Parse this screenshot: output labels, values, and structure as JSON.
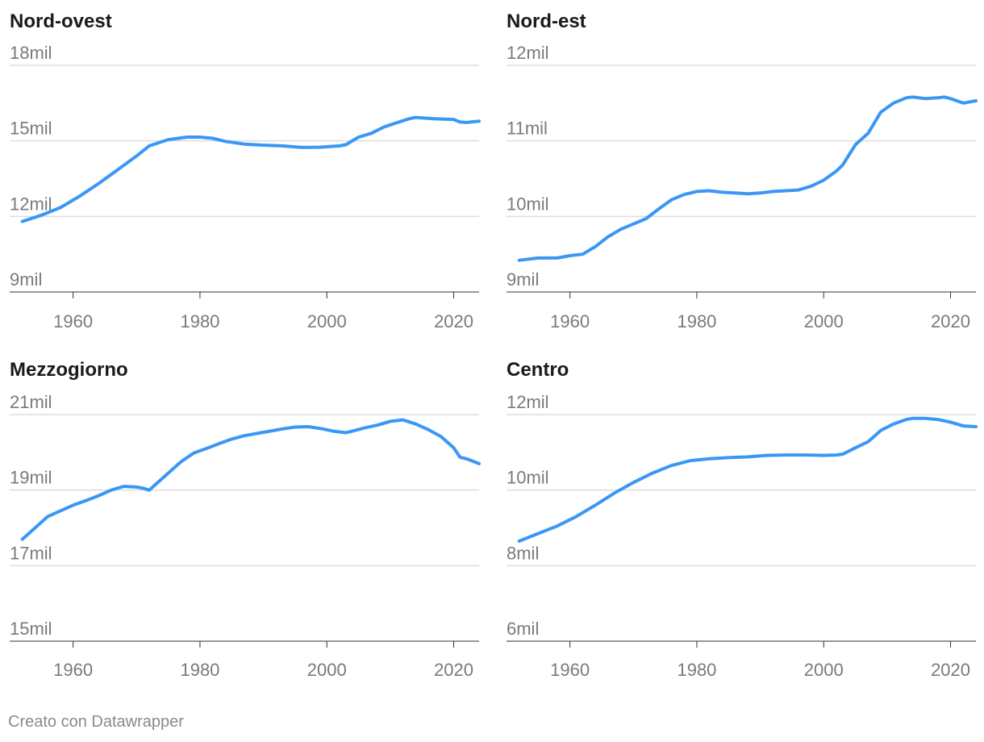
{
  "footer": {
    "credit": "Creato con Datawrapper"
  },
  "colors": {
    "line": "#3A97F5",
    "grid": "#dddddd",
    "text": "#7a7a7a",
    "title": "#1a1a1a"
  },
  "chart_data": [
    {
      "type": "line",
      "title": "Nord-ovest",
      "ylabel": "",
      "xlabel": "",
      "ylim": [
        9,
        18
      ],
      "yticks": [
        9,
        12,
        15,
        18
      ],
      "ytick_labels": [
        "9mil",
        "12mil",
        "15mil",
        "18mil"
      ],
      "xlim": [
        1950,
        2024
      ],
      "xticks": [
        1960,
        1980,
        2000,
        2020
      ],
      "xtick_labels": [
        "1960",
        "1980",
        "2000",
        "2020"
      ],
      "series": [
        {
          "name": "Nord-ovest",
          "x": [
            1952,
            1955,
            1958,
            1961,
            1964,
            1967,
            1970,
            1972,
            1975,
            1978,
            1980,
            1982,
            1984,
            1987,
            1990,
            1993,
            1996,
            1999,
            2002,
            2003,
            2005,
            2007,
            2009,
            2011,
            2013,
            2014,
            2015,
            2017,
            2020,
            2021,
            2022,
            2024
          ],
          "values": [
            11.8,
            12.05,
            12.35,
            12.8,
            13.3,
            13.85,
            14.4,
            14.8,
            15.05,
            15.15,
            15.15,
            15.1,
            14.98,
            14.87,
            14.83,
            14.8,
            14.74,
            14.75,
            14.8,
            14.85,
            15.15,
            15.3,
            15.55,
            15.72,
            15.88,
            15.93,
            15.91,
            15.88,
            15.85,
            15.75,
            15.73,
            15.78
          ]
        }
      ]
    },
    {
      "type": "line",
      "title": "Nord-est",
      "ylabel": "",
      "xlabel": "",
      "ylim": [
        9,
        12
      ],
      "yticks": [
        9,
        10,
        11,
        12
      ],
      "ytick_labels": [
        "9mil",
        "10mil",
        "11mil",
        "12mil"
      ],
      "xlim": [
        1950,
        2024
      ],
      "xticks": [
        1960,
        1980,
        2000,
        2020
      ],
      "xtick_labels": [
        "1960",
        "1980",
        "2000",
        "2020"
      ],
      "series": [
        {
          "name": "Nord-est",
          "x": [
            1952,
            1955,
            1958,
            1960,
            1962,
            1964,
            1966,
            1968,
            1970,
            1972,
            1974,
            1976,
            1978,
            1980,
            1982,
            1984,
            1986,
            1988,
            1990,
            1992,
            1994,
            1996,
            1998,
            2000,
            2002,
            2003,
            2005,
            2007,
            2009,
            2011,
            2013,
            2014,
            2016,
            2018,
            2019,
            2020,
            2022,
            2024
          ],
          "values": [
            9.42,
            9.45,
            9.45,
            9.48,
            9.5,
            9.6,
            9.73,
            9.83,
            9.9,
            9.97,
            10.1,
            10.22,
            10.29,
            10.33,
            10.34,
            10.32,
            10.31,
            10.3,
            10.31,
            10.33,
            10.34,
            10.35,
            10.4,
            10.48,
            10.6,
            10.68,
            10.95,
            11.1,
            11.38,
            11.5,
            11.57,
            11.58,
            11.56,
            11.57,
            11.58,
            11.56,
            11.5,
            11.53
          ]
        }
      ]
    },
    {
      "type": "line",
      "title": "Mezzogiorno",
      "ylabel": "",
      "xlabel": "",
      "ylim": [
        15,
        21
      ],
      "yticks": [
        15,
        17,
        19,
        21
      ],
      "ytick_labels": [
        "15mil",
        "17mil",
        "19mil",
        "21mil"
      ],
      "xlim": [
        1950,
        2024
      ],
      "xticks": [
        1960,
        1980,
        2000,
        2020
      ],
      "xtick_labels": [
        "1960",
        "1980",
        "2000",
        "2020"
      ],
      "series": [
        {
          "name": "Mezzogiorno",
          "x": [
            1952,
            1954,
            1956,
            1958,
            1960,
            1962,
            1964,
            1966,
            1968,
            1970,
            1971,
            1972,
            1973,
            1975,
            1977,
            1979,
            1981,
            1983,
            1985,
            1987,
            1989,
            1991,
            1993,
            1995,
            1997,
            1999,
            2001,
            2003,
            2004,
            2006,
            2008,
            2010,
            2012,
            2014,
            2016,
            2018,
            2020,
            2021,
            2022,
            2024
          ],
          "values": [
            17.7,
            18.0,
            18.3,
            18.45,
            18.6,
            18.72,
            18.85,
            19.0,
            19.1,
            19.08,
            19.05,
            19.0,
            19.15,
            19.45,
            19.75,
            19.98,
            20.1,
            20.23,
            20.35,
            20.44,
            20.5,
            20.56,
            20.62,
            20.67,
            20.68,
            20.63,
            20.56,
            20.52,
            20.56,
            20.65,
            20.72,
            20.82,
            20.86,
            20.75,
            20.6,
            20.42,
            20.12,
            19.87,
            19.83,
            19.7
          ]
        }
      ]
    },
    {
      "type": "line",
      "title": "Centro",
      "ylabel": "",
      "xlabel": "",
      "ylim": [
        6,
        12
      ],
      "yticks": [
        6,
        8,
        10,
        12
      ],
      "ytick_labels": [
        "6mil",
        "8mil",
        "10mil",
        "12mil"
      ],
      "xlim": [
        1950,
        2024
      ],
      "xticks": [
        1960,
        1980,
        2000,
        2020
      ],
      "xtick_labels": [
        "1960",
        "1980",
        "2000",
        "2020"
      ],
      "series": [
        {
          "name": "Centro",
          "x": [
            1952,
            1955,
            1958,
            1961,
            1964,
            1967,
            1970,
            1973,
            1976,
            1979,
            1982,
            1985,
            1988,
            1991,
            1994,
            1997,
            2000,
            2002,
            2003,
            2005,
            2007,
            2009,
            2011,
            2013,
            2014,
            2016,
            2018,
            2020,
            2022,
            2024
          ],
          "values": [
            8.65,
            8.85,
            9.05,
            9.3,
            9.6,
            9.92,
            10.2,
            10.45,
            10.65,
            10.78,
            10.83,
            10.86,
            10.88,
            10.92,
            10.93,
            10.93,
            10.92,
            10.93,
            10.95,
            11.12,
            11.28,
            11.58,
            11.75,
            11.87,
            11.9,
            11.9,
            11.87,
            11.8,
            11.7,
            11.68
          ]
        }
      ]
    }
  ]
}
